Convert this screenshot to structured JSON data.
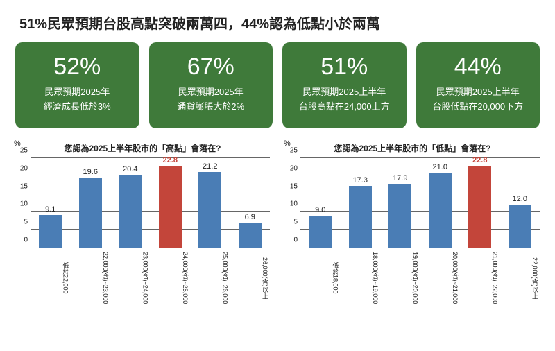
{
  "title": "51%民眾預期台股高點突破兩萬四，44%認為低點小於兩萬",
  "card_bg": "#3f7a3a",
  "card_text_color": "#ffffff",
  "cards": [
    {
      "pct": "52%",
      "line1": "民眾預期2025年",
      "line2": "經濟成長低於3%"
    },
    {
      "pct": "67%",
      "line1": "民眾預期2025年",
      "line2": "通貨膨脹大於2%"
    },
    {
      "pct": "51%",
      "line1": "民眾預期2025上半年",
      "line2": "台股高點在24,000上方"
    },
    {
      "pct": "44%",
      "line1": "民眾預期2025上半年",
      "line2": "台股低點在20,000下方"
    }
  ],
  "chart_common": {
    "y_unit": "%",
    "y_ticks": [
      0,
      5,
      10,
      15,
      20,
      25
    ],
    "y_max": 25,
    "grid_color": "#666666",
    "bar_color_default": "#4a7db5",
    "bar_color_highlight": "#c3453a",
    "label_color_default": "#222222",
    "label_color_highlight": "#c3453a",
    "label_fontsize": 11,
    "title_fontsize": 12,
    "xlabel_fontsize": 9
  },
  "chart_left": {
    "title": "您認為2025上半年股市的「高點」會落在?",
    "type": "bar",
    "categories": [
      "低於22,000",
      "22,000(含)~23,000",
      "23,000(含)~24,000",
      "24,000(含)~25,000",
      "25,000(含)~26,000",
      "26,000(含)以上"
    ],
    "values": [
      9.1,
      19.6,
      20.4,
      22.8,
      21.2,
      6.9
    ],
    "highlight_index": 3
  },
  "chart_right": {
    "title": "您認為2025上半年股市的「低點」會落在?",
    "type": "bar",
    "categories": [
      "低於18,000",
      "18,000(含)~19,000",
      "19,000(含)~20,000",
      "20,000(含)~21,000",
      "21,000(含)~22,000",
      "22,000(含)以上"
    ],
    "values": [
      9.0,
      17.3,
      17.9,
      21.0,
      22.8,
      12.0
    ],
    "highlight_index": 4
  }
}
